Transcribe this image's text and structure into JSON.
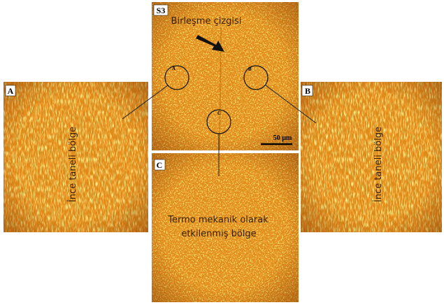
{
  "panels": [
    {
      "label": "S3",
      "caption": "Birleşme çizgisi",
      "scale_bar": "50 µm",
      "markers": [
        "A",
        "B",
        "C"
      ]
    },
    {
      "label": "A",
      "caption": "İnce taneli bölge"
    },
    {
      "label": "B",
      "caption": "İnce taneli bölge"
    },
    {
      "label": "C",
      "caption_lines": [
        "Termo mekanik olarak",
        "etkilenmiş bölge"
      ]
    }
  ]
}
